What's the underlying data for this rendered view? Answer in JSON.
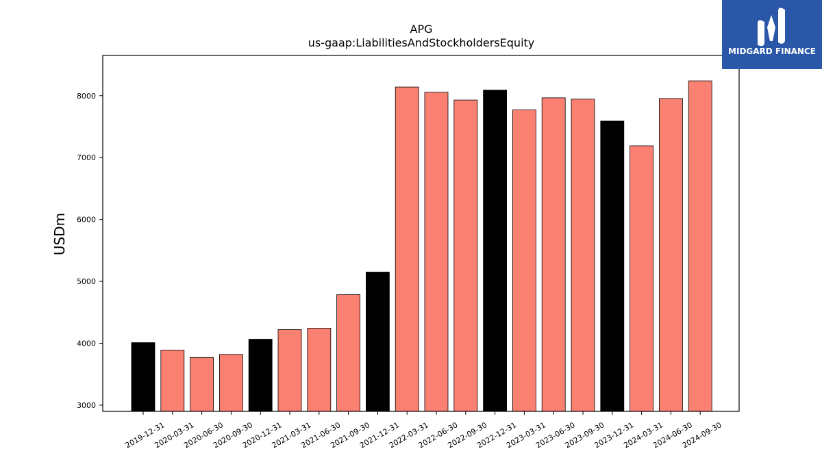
{
  "logo": {
    "text": "MIDGARD FINANCE",
    "icon": "midgard-m-logo",
    "background": "#2b57a8"
  },
  "chart_data": {
    "type": "bar",
    "title": "APG",
    "subtitle": "us-gaap:LiabilitiesAndStockholdersEquity",
    "xlabel": "",
    "ylabel": "USDm",
    "ylim": [
      2900,
      8650
    ],
    "yticks": [
      3000,
      4000,
      5000,
      6000,
      7000,
      8000
    ],
    "grid": false,
    "colors": {
      "quarter": "#fa8072",
      "year_end": "#000000",
      "edge": "#000000"
    },
    "categories": [
      "2019-12-31",
      "2020-03-31",
      "2020-06-30",
      "2020-09-30",
      "2020-12-31",
      "2021-03-31",
      "2021-06-30",
      "2021-09-30",
      "2021-12-31",
      "2022-03-31",
      "2022-06-30",
      "2022-09-30",
      "2022-12-31",
      "2023-03-31",
      "2023-06-30",
      "2023-09-30",
      "2023-12-31",
      "2024-03-31",
      "2024-06-30",
      "2024-09-30"
    ],
    "values": [
      4010,
      3890,
      3770,
      3820,
      4065,
      4220,
      4245,
      4785,
      5150,
      8140,
      8055,
      7930,
      8090,
      7770,
      7965,
      7945,
      7590,
      7190,
      7955,
      8240
    ],
    "year_end": [
      true,
      false,
      false,
      false,
      true,
      false,
      false,
      false,
      true,
      false,
      false,
      false,
      true,
      false,
      false,
      false,
      true,
      false,
      false,
      false
    ]
  }
}
